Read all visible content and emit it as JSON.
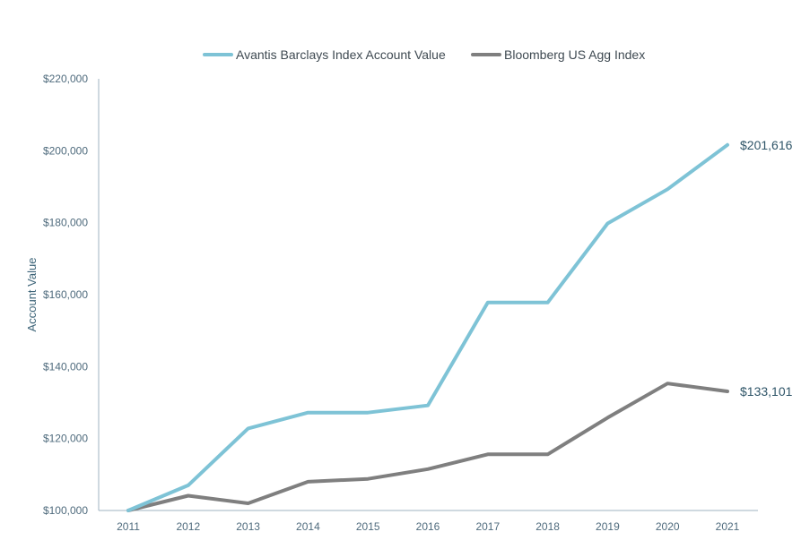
{
  "chart_data": {
    "type": "line",
    "title": "",
    "xlabel": "",
    "ylabel": "Account Value",
    "x": [
      "2011",
      "2012",
      "2013",
      "2014",
      "2015",
      "2016",
      "2017",
      "2018",
      "2019",
      "2020",
      "2021"
    ],
    "ylim": [
      100000,
      220000
    ],
    "yticks": [
      100000,
      120000,
      140000,
      160000,
      180000,
      200000,
      220000
    ],
    "ytick_labels": [
      "$100,000",
      "$120,000",
      "$140,000",
      "$160,000",
      "$180,000",
      "$200,000",
      "$220,000"
    ],
    "grid": false,
    "legend_position": "top",
    "series": [
      {
        "name": "Avantis Barclays Index Account Value",
        "color": "#7ec3d6",
        "values": [
          100000,
          107000,
          122800,
          127200,
          127200,
          129200,
          157800,
          157800,
          179800,
          189300,
          201616
        ],
        "end_label": "$201,616"
      },
      {
        "name": "Bloomberg US Agg Index",
        "color": "#7f7f7f",
        "values": [
          100000,
          104100,
          102000,
          108000,
          108800,
          111500,
          115600,
          115600,
          125800,
          135300,
          133101
        ],
        "end_label": "$133,101"
      }
    ],
    "axis_color": "#9fb3c2"
  }
}
